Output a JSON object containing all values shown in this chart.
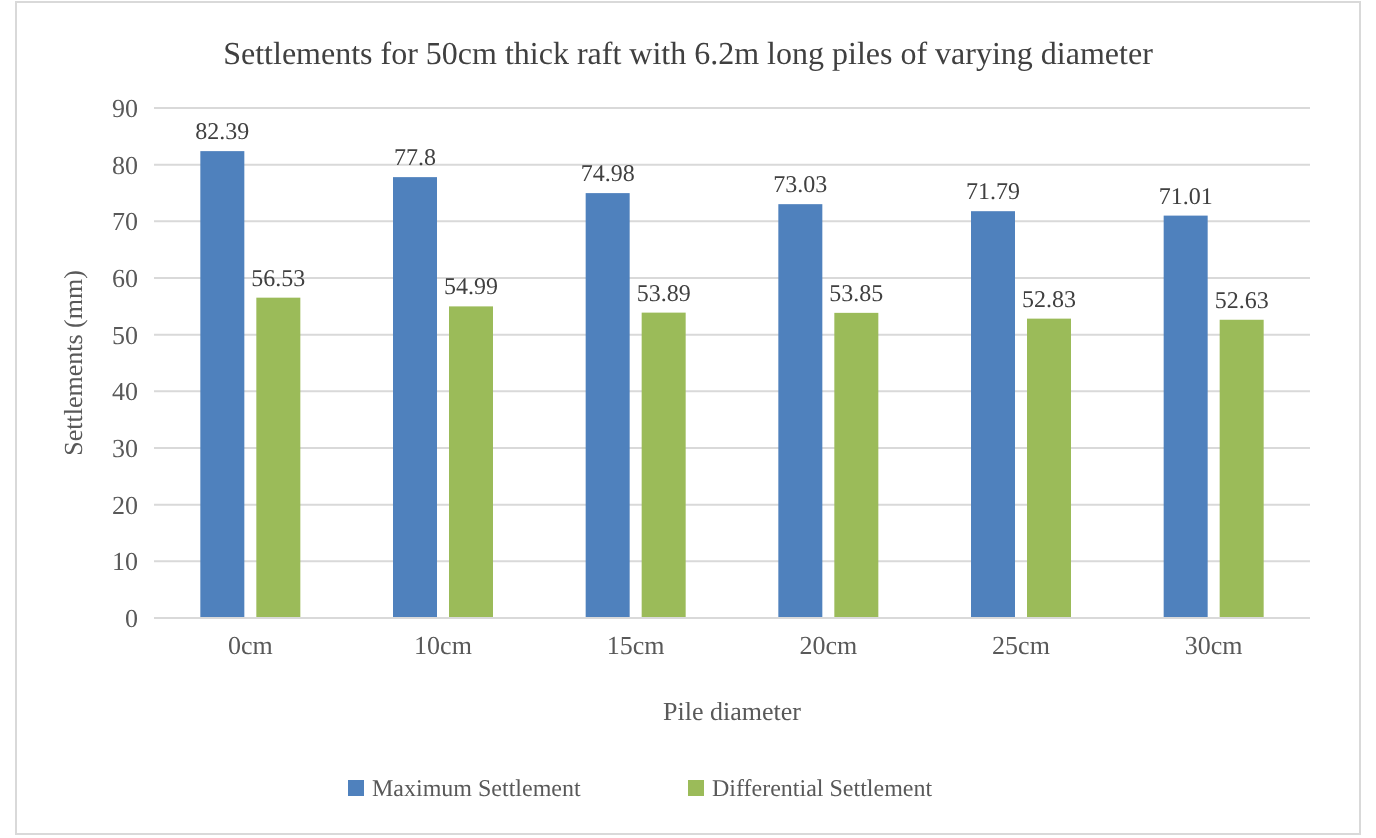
{
  "chart_data": {
    "type": "bar",
    "title": "Settlements for 50cm thick raft with 6.2m long piles of varying diameter",
    "xlabel": "Pile diameter",
    "ylabel": "Settlements (mm)",
    "categories": [
      "0cm",
      "10cm",
      "15cm",
      "20cm",
      "25cm",
      "30cm"
    ],
    "series": [
      {
        "name": "Maximum Settlement",
        "color": "#4f81bd",
        "values": [
          82.39,
          77.8,
          74.98,
          73.03,
          71.79,
          71.01
        ]
      },
      {
        "name": "Differential Settlement",
        "color": "#9bbb59",
        "values": [
          56.53,
          54.99,
          53.89,
          53.85,
          52.83,
          52.63
        ]
      }
    ],
    "ylim": [
      0,
      90
    ],
    "yticks": [
      0,
      10,
      20,
      30,
      40,
      50,
      60,
      70,
      80,
      90
    ],
    "grid": "y",
    "legend": "bottom",
    "data_labels": true
  }
}
